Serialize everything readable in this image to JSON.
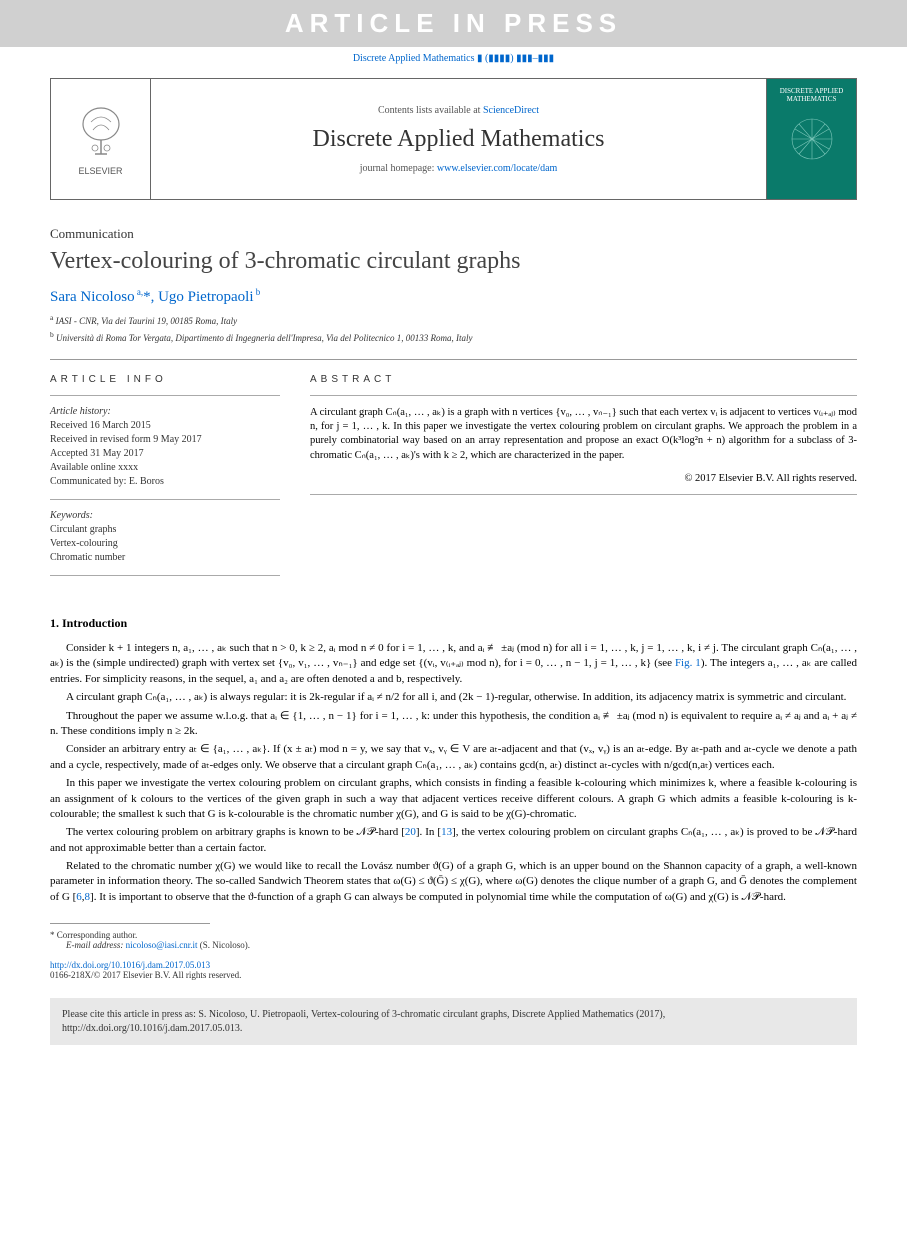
{
  "banner": {
    "text": "ARTICLE IN PRESS"
  },
  "running_head": {
    "text": "Discrete Applied Mathematics ▮ (▮▮▮▮) ▮▮▮–▮▮▮"
  },
  "header": {
    "elsevier_label": "ELSEVIER",
    "contents_prefix": "Contents lists available at ",
    "contents_link": "ScienceDirect",
    "journal": "Discrete Applied Mathematics",
    "homepage_prefix": "journal homepage: ",
    "homepage_url": "www.elsevier.com/locate/dam",
    "cover_title": "DISCRETE APPLIED MATHEMATICS"
  },
  "article": {
    "type_label": "Communication",
    "title": "Vertex-colouring of 3-chromatic circulant graphs",
    "authors_html": "Sara Nicoloso <sup>a,</sup><span class='corr'>*</span>, Ugo Pietropaoli <sup>b</sup>",
    "affil_a": "a IASI - CNR, Via dei Taurini 19, 00185 Roma, Italy",
    "affil_b": "b Università di Roma Tor Vergata, Dipartimento di Ingegneria dell'Impresa, Via del Politecnico 1, 00133 Roma, Italy"
  },
  "info": {
    "head": "ARTICLE INFO",
    "history_label": "Article history:",
    "received": "Received 16 March 2015",
    "revised": "Received in revised form 9 May 2017",
    "accepted": "Accepted 31 May 2017",
    "online": "Available online xxxx",
    "communicated": "Communicated by: E. Boros",
    "keywords_label": "Keywords:",
    "kw1": "Circulant graphs",
    "kw2": "Vertex-colouring",
    "kw3": "Chromatic number"
  },
  "abstract": {
    "head": "ABSTRACT",
    "text": "A circulant graph Cₙ(a₁, … , aₖ) is a graph with n vertices {v₀, … , vₙ₋₁} such that each vertex vᵢ is adjacent to vertices v₍ᵢ₊ₐⱼ₎ mod n, for j = 1, … , k. In this paper we investigate the vertex colouring problem on circulant graphs. We approach the problem in a purely combinatorial way based on an array representation and propose an exact O(k³log²n + n) algorithm for a subclass of 3-chromatic Cₙ(a₁, … , aₖ)'s with k ≥ 2, which are characterized in the paper.",
    "copyright": "© 2017 Elsevier B.V. All rights reserved."
  },
  "sections": {
    "intro_head": "1.  Introduction",
    "p1": "Consider k + 1 integers n, a₁, … , aₖ such that n > 0, k ≥ 2, aᵢ mod n ≠ 0 for i = 1, … , k, and aᵢ ≢ ±aⱼ (mod n) for all i = 1, … , k, j = 1, … , k, i ≠ j. The circulant graph Cₙ(a₁, … , aₖ) is the (simple undirected) graph with vertex set {v₀, v₁, … , vₙ₋₁} and edge set {(vᵢ, v₍ᵢ₊ₐⱼ₎ mod n), for i = 0, … , n − 1, j = 1, … , k} (see Fig. 1). The integers a₁, … , aₖ are called entries. For simplicity reasons, in the sequel, a₁ and a₂ are often denoted a and b, respectively.",
    "p2": "A circulant graph Cₙ(a₁, … , aₖ) is always regular: it is 2k-regular if aᵢ ≠ n/2 for all i, and (2k − 1)-regular, otherwise. In addition, its adjacency matrix is symmetric and circulant.",
    "p3": "Throughout the paper we assume w.l.o.g. that aᵢ ∈ {1, … , n − 1} for i = 1, … , k: under this hypothesis, the condition aᵢ ≢ ±aⱼ (mod n) is equivalent to require aᵢ ≠ aⱼ and aᵢ + aⱼ ≠ n. These conditions imply n ≥ 2k.",
    "p4": "Consider an arbitrary entry aₜ ∈ {a₁, … , aₖ}. If (x ± aₜ) mod n = y, we say that vₓ, vᵧ ∈ V are aₜ-adjacent and that (vₓ, vᵧ) is an aₜ-edge. By aₜ-path and aₜ-cycle we denote a path and a cycle, respectively, made of aₜ-edges only. We observe that a circulant graph Cₙ(a₁, … , aₖ) contains gcd(n, aₜ) distinct aₜ-cycles with n/gcd(n,aₜ) vertices each.",
    "p5": "In this paper we investigate the vertex colouring problem on circulant graphs, which consists in finding a feasible k-colouring which minimizes k, where a feasible k-colouring is an assignment of k colours to the vertices of the given graph in such a way that adjacent vertices receive different colours. A graph G which admits a feasible k-colouring is k-colourable; the smallest k such that G is k-colourable is the chromatic number χ(G), and G is said to be χ(G)-chromatic.",
    "p6": "The vertex colouring problem on arbitrary graphs is known to be 𝒩𝒫-hard [20]. In [13], the vertex colouring problem on circulant graphs Cₙ(a₁, … , aₖ) is proved to be 𝒩𝒫-hard and not approximable better than a certain factor.",
    "p7": "Related to the chromatic number χ(G) we would like to recall the Lovász number ϑ(G) of a graph G, which is an upper bound on the Shannon capacity of a graph, a well-known parameter in information theory. The so-called Sandwich Theorem states that ω(G) ≤ ϑ(Ḡ) ≤ χ(G), where ω(G) denotes the clique number of a graph G, and Ḡ denotes the complement of G [6,8]. It is important to observe that the ϑ-function of a graph G can always be computed in polynomial time while the computation of ω(G) and χ(G) is 𝒩𝒫-hard."
  },
  "footnotes": {
    "corr": "* Corresponding author.",
    "email_label": "E-mail address: ",
    "email": "nicoloso@iasi.cnr.it",
    "email_suffix": " (S. Nicoloso)."
  },
  "doi": {
    "url": "http://dx.doi.org/10.1016/j.dam.2017.05.013",
    "line2": "0166-218X/© 2017 Elsevier B.V. All rights reserved."
  },
  "citebox": {
    "text": "Please cite this article in press as: S. Nicoloso, U. Pietropaoli, Vertex-colouring of 3-chromatic circulant graphs, Discrete Applied Mathematics (2017), http://dx.doi.org/10.1016/j.dam.2017.05.013."
  },
  "colors": {
    "banner_bg": "#d0d0d0",
    "banner_text": "#ffffff",
    "link": "#0066cc",
    "cover_bg": "#0a7a6a",
    "cite_bg": "#e8e8e8",
    "rule": "#999999"
  }
}
